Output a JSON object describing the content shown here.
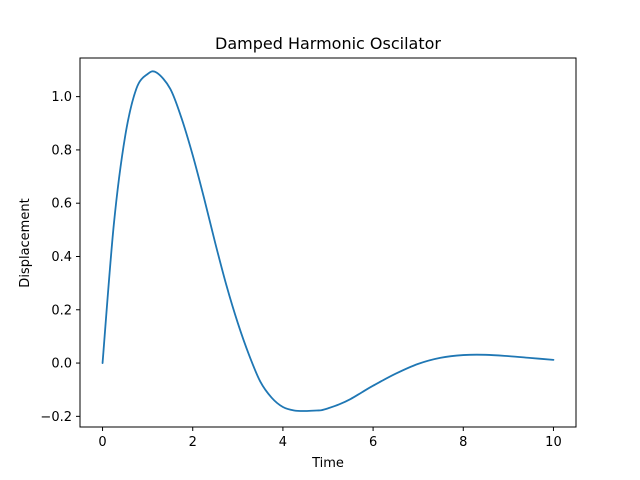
{
  "chart_data": {
    "type": "line",
    "title": "Damped Harmonic Oscilator",
    "xlabel": "Time",
    "ylabel": "Displacement",
    "xlim": [
      -0.5,
      10.5
    ],
    "ylim": [
      -0.24,
      1.145
    ],
    "x_ticks": [
      0,
      2,
      4,
      6,
      8,
      10
    ],
    "x_tick_labels": [
      "0",
      "2",
      "4",
      "6",
      "8",
      "10"
    ],
    "y_ticks": [
      -0.2,
      0.0,
      0.2,
      0.4,
      0.6,
      0.8,
      1.0
    ],
    "y_tick_labels": [
      "−0.2",
      "0.0",
      "0.2",
      "0.4",
      "0.6",
      "0.8",
      "1.0"
    ],
    "grid": false,
    "series": [
      {
        "color": "#1f77b4",
        "x": [
          0,
          0.25,
          0.5,
          0.75,
          1.0,
          1.2,
          1.5,
          1.75,
          2.0,
          2.25,
          2.5,
          2.75,
          3.0,
          3.25,
          3.5,
          3.75,
          4.0,
          4.25,
          4.5,
          4.75,
          4.85,
          5.0,
          5.25,
          5.5,
          5.75,
          6.0,
          6.5,
          7.0,
          7.5,
          8.0,
          8.5,
          9.0,
          9.5,
          10.0
        ],
        "y": [
          0.0,
          0.52,
          0.85,
          1.03,
          1.085,
          1.09,
          1.03,
          0.92,
          0.78,
          0.62,
          0.45,
          0.29,
          0.15,
          0.03,
          -0.07,
          -0.13,
          -0.165,
          -0.178,
          -0.18,
          -0.178,
          -0.177,
          -0.17,
          -0.155,
          -0.135,
          -0.11,
          -0.085,
          -0.04,
          -0.003,
          0.02,
          0.03,
          0.031,
          0.026,
          0.019,
          0.012
        ]
      }
    ]
  }
}
